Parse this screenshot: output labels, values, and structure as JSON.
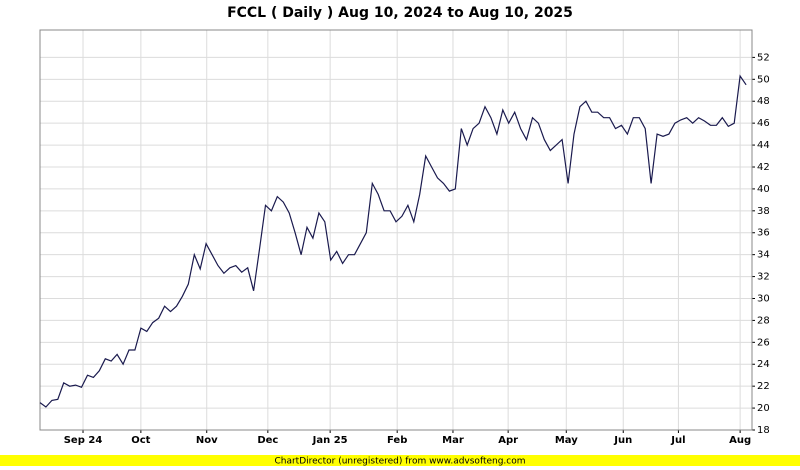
{
  "chart_data": {
    "type": "line",
    "title": "FCCL ( Daily ) Aug 10, 2024 to Aug 10, 2025",
    "footer": "ChartDirector (unregistered) from www.advsofteng.com",
    "color": "#1a1a4e",
    "values": [
      20.5,
      20.1,
      20.7,
      20.8,
      22.3,
      22.0,
      22.1,
      21.9,
      23.0,
      22.8,
      23.4,
      24.5,
      24.3,
      24.9,
      24.0,
      25.3,
      25.3,
      27.3,
      27.0,
      27.8,
      28.2,
      29.3,
      28.8,
      29.3,
      30.2,
      31.3,
      34.0,
      32.7,
      35.0,
      34.0,
      33.0,
      32.3,
      32.8,
      33.0,
      32.4,
      32.8,
      30.7,
      34.5,
      38.5,
      38.0,
      39.3,
      38.8,
      37.8,
      36.0,
      34.0,
      36.5,
      35.5,
      37.8,
      37.0,
      33.5,
      34.3,
      33.2,
      34.0,
      34.0,
      35.0,
      36.0,
      40.5,
      39.5,
      38.0,
      38.0,
      37.0,
      37.5,
      38.5,
      37.0,
      39.5,
      43.0,
      42.0,
      41.0,
      40.5,
      39.8,
      40.0,
      45.5,
      44.0,
      45.5,
      46.0,
      47.5,
      46.5,
      45.0,
      47.2,
      46.0,
      47.0,
      45.5,
      44.5,
      46.5,
      46.0,
      44.5,
      43.5,
      44.0,
      44.5,
      40.5,
      45.0,
      47.5,
      48.0,
      47.0,
      47.0,
      46.5,
      46.5,
      45.5,
      45.8,
      45.0,
      46.5,
      46.5,
      45.5,
      40.5,
      45.0,
      44.8,
      45.0,
      46.0,
      46.3,
      46.5,
      46.0,
      46.5,
      46.2,
      45.8,
      45.8,
      46.5,
      45.7,
      46.0,
      50.3,
      49.5
    ],
    "xlim": [
      0,
      120
    ],
    "xticks": [
      {
        "value": 7.25,
        "label": "Sep 24"
      },
      {
        "value": 17.0,
        "label": "Oct"
      },
      {
        "value": 28.1,
        "label": "Nov"
      },
      {
        "value": 38.4,
        "label": "Dec"
      },
      {
        "value": 48.9,
        "label": "Jan 25"
      },
      {
        "value": 60.2,
        "label": "Feb"
      },
      {
        "value": 69.6,
        "label": "Mar"
      },
      {
        "value": 78.9,
        "label": "Apr"
      },
      {
        "value": 88.7,
        "label": "May"
      },
      {
        "value": 98.3,
        "label": "Jun"
      },
      {
        "value": 107.6,
        "label": "Jul"
      },
      {
        "value": 118.0,
        "label": "Aug"
      }
    ],
    "ylim": [
      18,
      54.5
    ],
    "yticks": [
      18,
      20,
      22,
      24,
      26,
      28,
      30,
      32,
      34,
      36,
      38,
      40,
      42,
      44,
      46,
      48,
      50,
      52
    ],
    "grid": true
  }
}
